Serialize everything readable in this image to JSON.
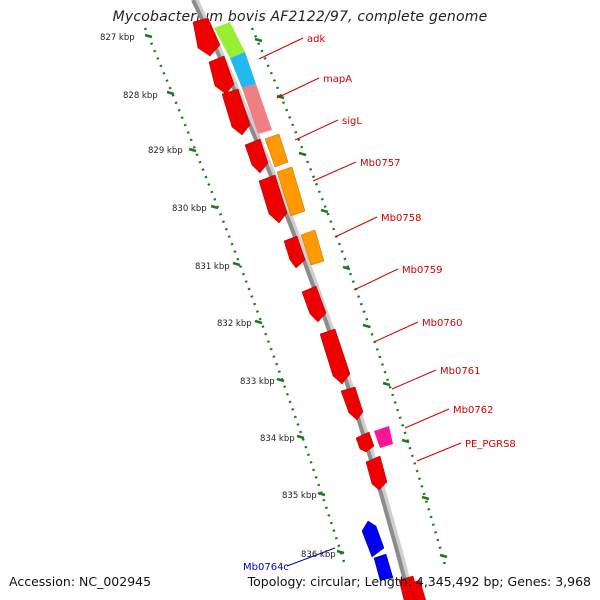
{
  "title": "Mycobacterium bovis AF2122/97, complete genome",
  "footer": {
    "accession": "Accession: NC_002945",
    "summary": "Topology: circular; Length: 4,345,492 bp; Genes: 3,968"
  },
  "colors": {
    "backbone": "#8c8c8c",
    "ticks": "#1f7a1f",
    "gene_label": "#d10000",
    "gene_label_minus": "#0000cc"
  },
  "scale_labels": [
    "827 kbp",
    "828 kbp",
    "829 kbp",
    "830 kbp",
    "831 kbp",
    "832 kbp",
    "833 kbp",
    "834 kbp",
    "835 kbp",
    "836 kbp"
  ],
  "gene_labels": [
    "adk",
    "mapA",
    "sigL",
    "Mb0757",
    "Mb0758",
    "Mb0759",
    "Mb0760",
    "Mb0761",
    "Mb0762",
    "PE_PGRS8",
    "Mb0764c"
  ]
}
